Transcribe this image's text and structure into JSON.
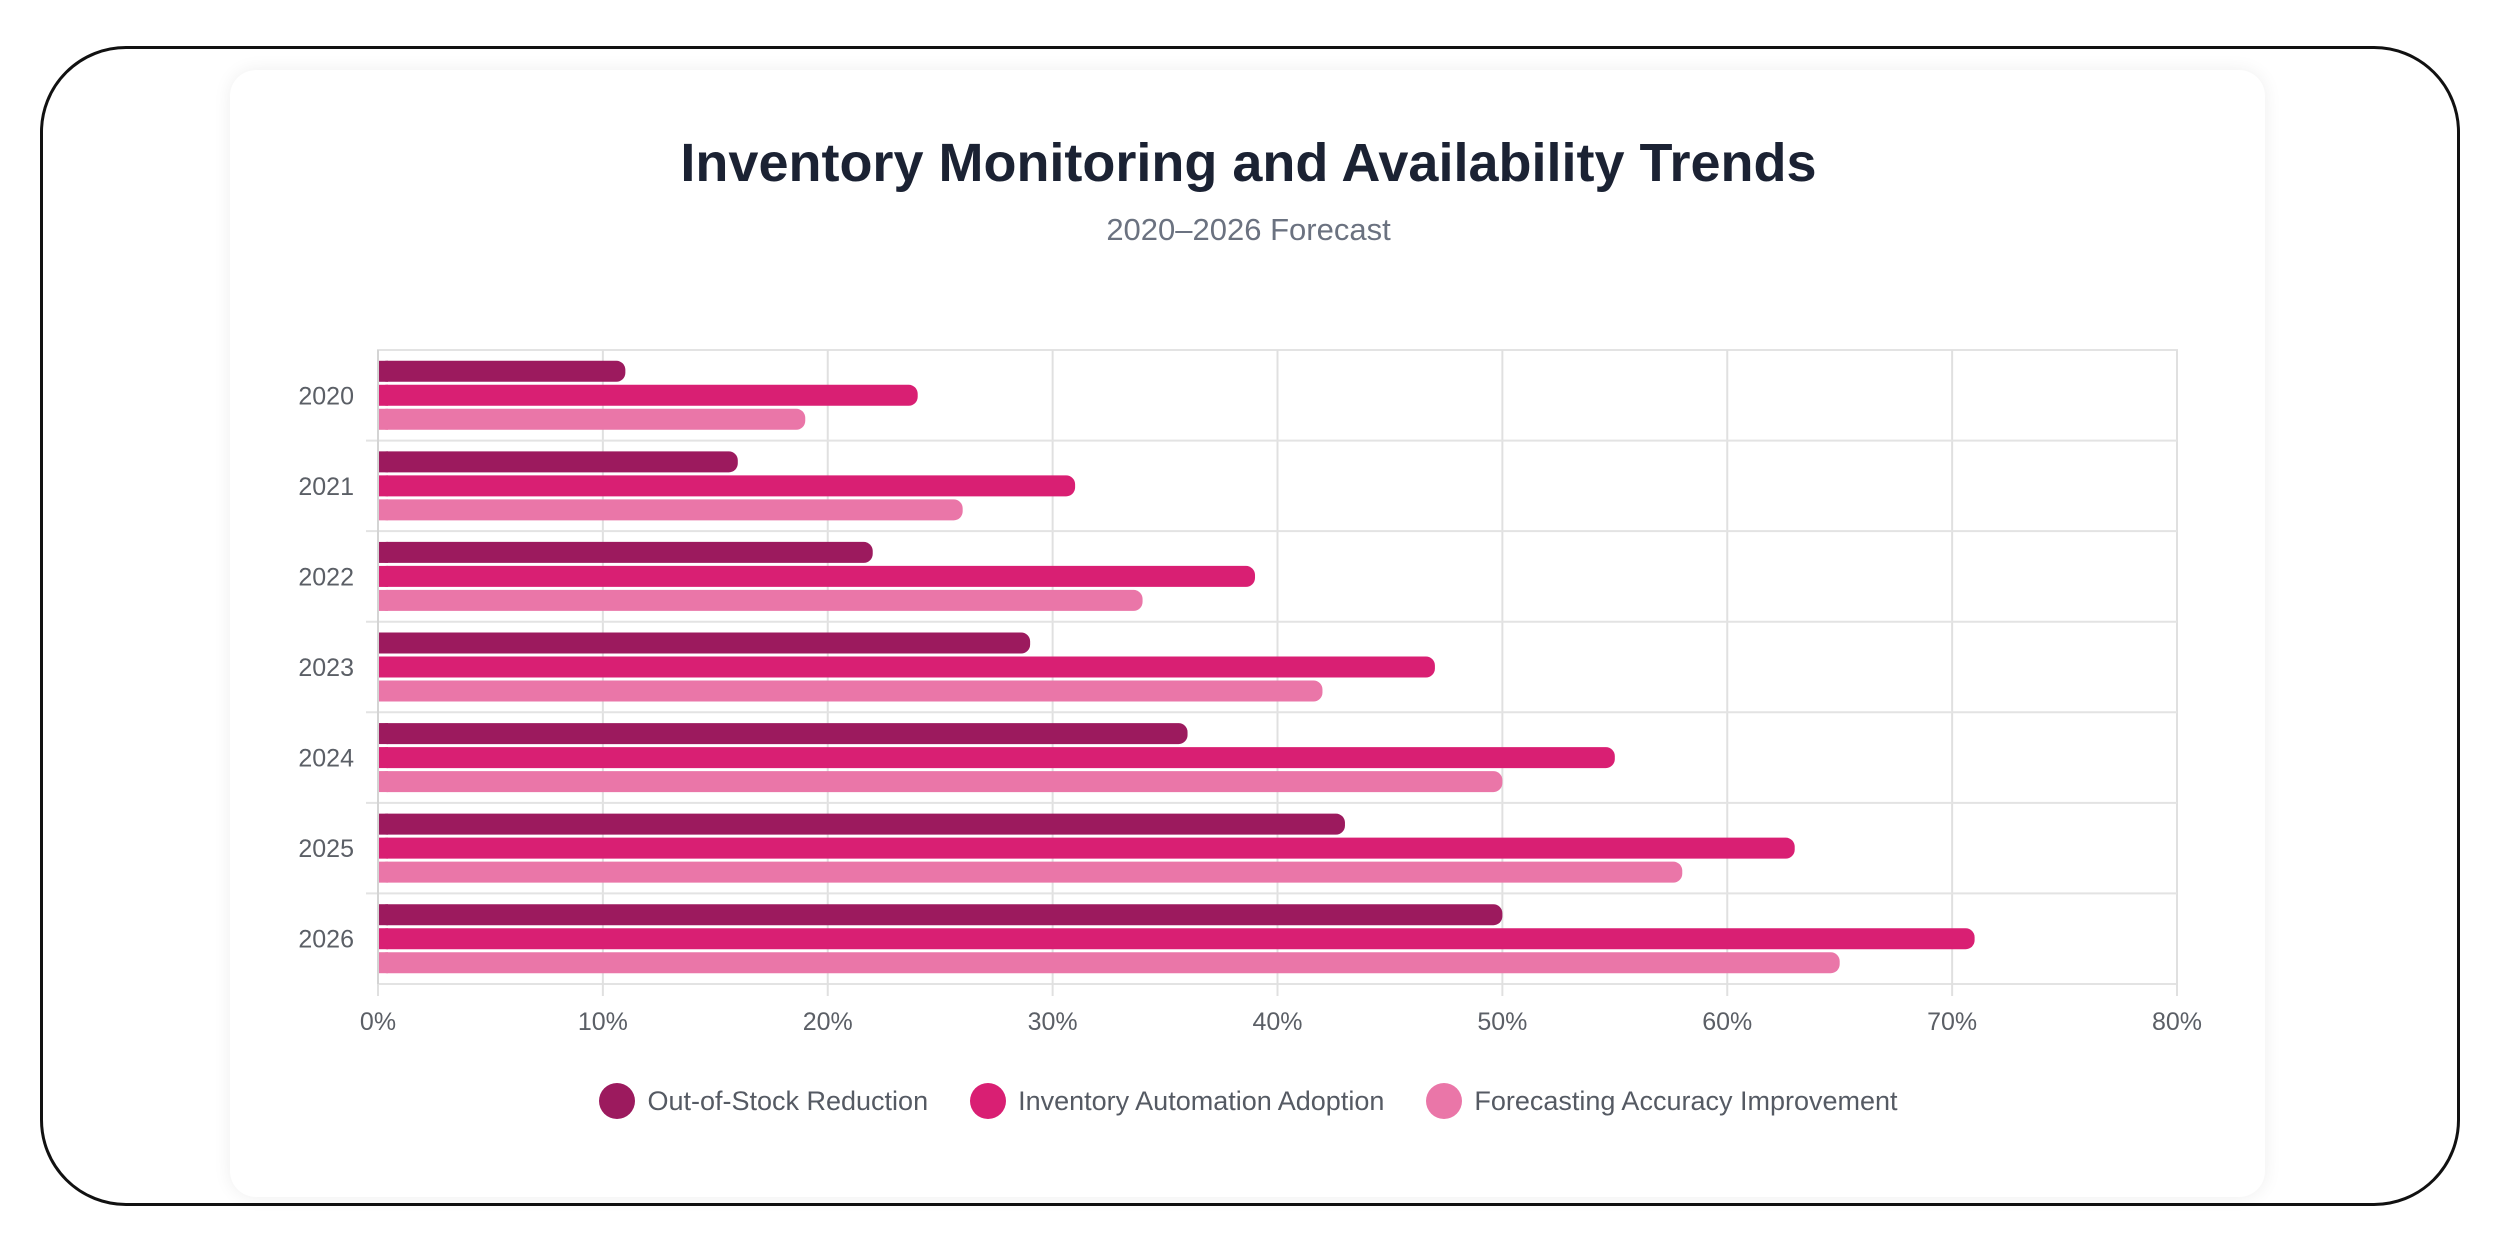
{
  "chart_data": {
    "type": "bar",
    "orientation": "horizontal",
    "title": "Inventory Monitoring and Availability Trends",
    "subtitle": "2020–2026 Forecast",
    "categories": [
      "2020",
      "2021",
      "2022",
      "2023",
      "2024",
      "2025",
      "2026"
    ],
    "series": [
      {
        "name": "Out-of-Stock Reduction",
        "color": "#9c1a5e",
        "values": [
          11,
          16,
          22,
          29,
          36,
          43,
          50
        ]
      },
      {
        "name": "Inventory Automation Adoption",
        "color": "#d91f73",
        "values": [
          24,
          31,
          39,
          47,
          55,
          63,
          71
        ]
      },
      {
        "name": "Forecasting Accuracy Improvement",
        "color": "#ea76a8",
        "values": [
          19,
          26,
          34,
          42,
          50,
          58,
          65
        ]
      }
    ],
    "xlim": [
      0,
      80
    ],
    "xticks": [
      "0%",
      "10%",
      "20%",
      "30%",
      "40%",
      "50%",
      "60%",
      "70%",
      "80%"
    ],
    "xlabel": "",
    "ylabel": "",
    "grid": true,
    "legend_position": "bottom"
  }
}
